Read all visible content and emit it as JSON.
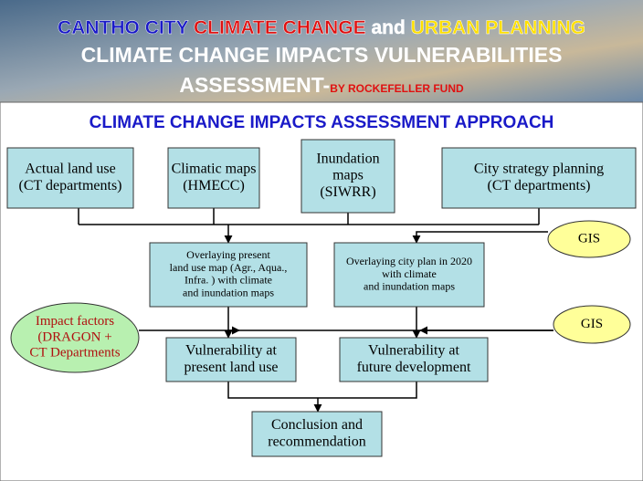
{
  "header": {
    "line1": [
      "CANTHO CITY",
      "CLIMATE CHANGE",
      "and",
      "URBAN PLANNING"
    ],
    "line2": "CLIMATE CHANGE IMPACTS VULNERABILITIES",
    "line3": [
      "ASSESSMENT-",
      "BY ROCKEFELLER FUND"
    ]
  },
  "subtitle": "CLIMATE CHANGE IMPACTS ASSESSMENT APPROACH",
  "nodes": [
    {
      "lines": [
        "Actual land use",
        "(CT departments)"
      ]
    },
    {
      "lines": [
        "Climatic maps",
        "(HMECC)"
      ]
    },
    {
      "lines": [
        "Inundation",
        "maps",
        "(SIWRR)"
      ]
    },
    {
      "lines": [
        "City strategy planning",
        "(CT departments)"
      ]
    },
    {
      "lines": [
        "Overlaying present",
        "land use map (Agr., Aqua.,",
        "Infra. ) with climate",
        "and inundation maps"
      ]
    },
    {
      "lines": [
        "Overlaying city plan in 2020",
        "with climate",
        "and inundation maps"
      ]
    },
    {
      "lines": [
        "GIS"
      ]
    },
    {
      "lines": [
        "Impact factors",
        "(DRAGON +",
        "CT Departments"
      ]
    },
    {
      "lines": [
        "GIS"
      ]
    },
    {
      "lines": [
        "Vulnerability at",
        "present land use"
      ]
    },
    {
      "lines": [
        "Vulnerability at",
        "future development"
      ]
    },
    {
      "lines": [
        "Conclusion and",
        "recommendation"
      ]
    }
  ]
}
